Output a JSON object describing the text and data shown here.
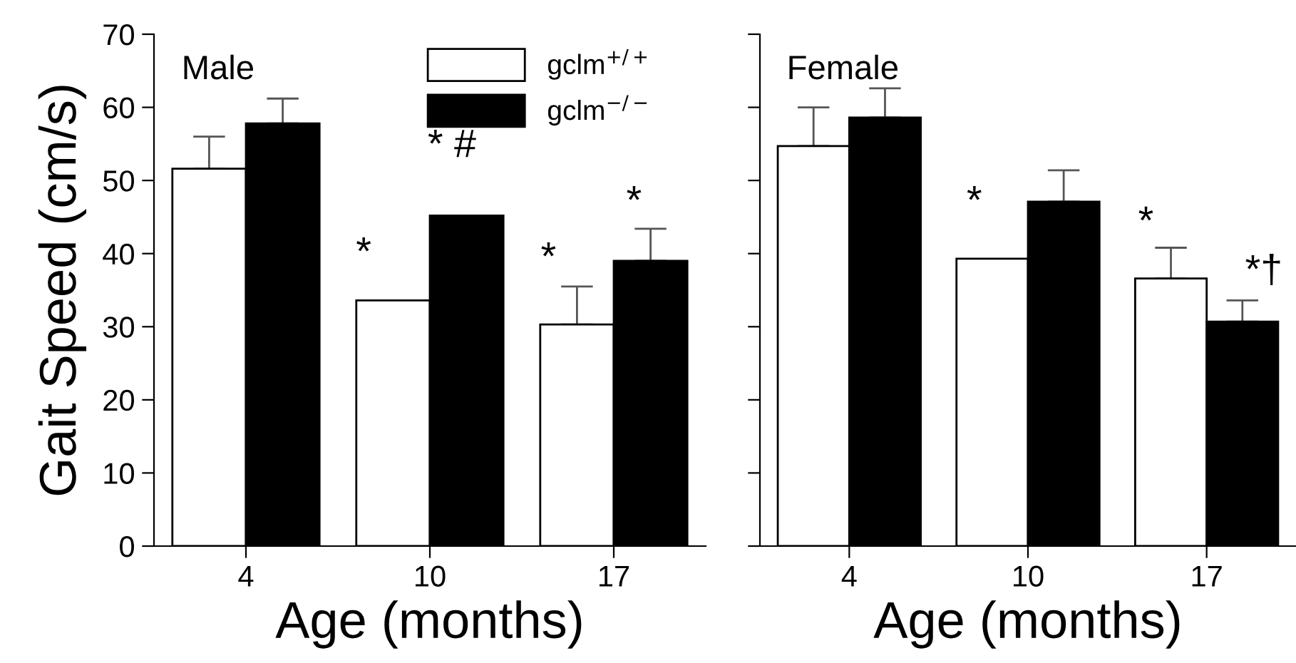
{
  "chart_data": [
    {
      "type": "bar",
      "xlabel": "Age (months)",
      "ylabel": "Gait Speed (cm/s)",
      "categories": [
        "4",
        "10",
        "17"
      ],
      "ylim": [
        0,
        70
      ],
      "yticks": [
        0,
        10,
        20,
        30,
        40,
        50,
        60,
        70
      ],
      "legend": "top right",
      "series": [
        {
          "name": "gclm$^{+/+}$",
          "color": "#ffffff",
          "values": [
            51.6,
            33.6,
            30.3
          ],
          "errors": [
            [
              51.6,
              56.0
            ],
            null,
            [
              30.3,
              35.5
            ]
          ]
        },
        {
          "name": "gclm$^{−/−}$",
          "color": "#000000",
          "values": [
            57.8,
            45.2,
            39.0
          ],
          "errors": [
            [
              57.8,
              61.2
            ],
            null,
            [
              39.0,
              43.4
            ]
          ]
        }
      ],
      "annotations": [
        "Male",
        "*",
        "* #",
        "*",
        "*"
      ]
    },
    {
      "type": "bar",
      "xlabel": "Age (months)",
      "categories": [
        "4",
        "10",
        "17"
      ],
      "ylim": [
        0,
        70
      ],
      "yticks": [
        0,
        10,
        20,
        30,
        40,
        50,
        60,
        70
      ],
      "tick_labels": "x",
      "series": [
        {
          "color": "#ffffff",
          "values": [
            54.7,
            39.3,
            36.6
          ],
          "errors": [
            [
              54.7,
              60.0
            ],
            null,
            [
              36.6,
              40.8
            ]
          ]
        },
        {
          "color": "#000000",
          "values": [
            58.6,
            47.1,
            30.7
          ],
          "errors": [
            [
              58.6,
              62.6
            ],
            [
              47.1,
              51.4
            ],
            [
              30.7,
              33.6
            ]
          ]
        }
      ],
      "annotations": [
        "Female",
        "*",
        "*",
        "*†"
      ]
    }
  ]
}
